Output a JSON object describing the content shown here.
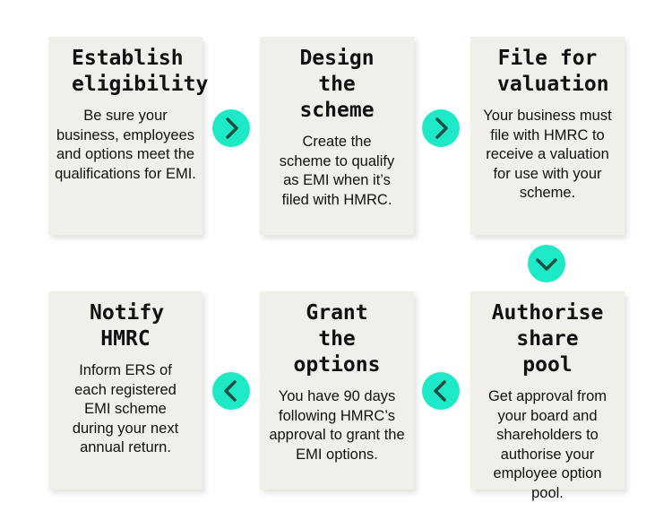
{
  "steps": [
    {
      "title": "Establish eligibility",
      "body": "Be sure your business, employees and options meet the qualifications for EMI."
    },
    {
      "title": "Design the scheme",
      "body": "Create the scheme to qualify as EMI when it’s filed with HMRC."
    },
    {
      "title": "File for valuation",
      "body": "Your business must file with HMRC to receive a valuation for use with your scheme."
    },
    {
      "title": "Authorise share pool",
      "body": "Get approval from your board and shareholders to authorise your employee option pool."
    },
    {
      "title": "Grant the options",
      "body": "You have 90 days following HMRC’s approval to grant the EMI options."
    },
    {
      "title": "Notify HMRC",
      "body": "Inform ERS of each registered EMI scheme during your next annual return."
    }
  ],
  "colors": {
    "card": "#f0efe9",
    "arrow": "#1de9c6",
    "chevron": "#1f4d45"
  },
  "arrows": [
    "chevron-right",
    "chevron-right",
    "chevron-down",
    "chevron-left",
    "chevron-left"
  ]
}
